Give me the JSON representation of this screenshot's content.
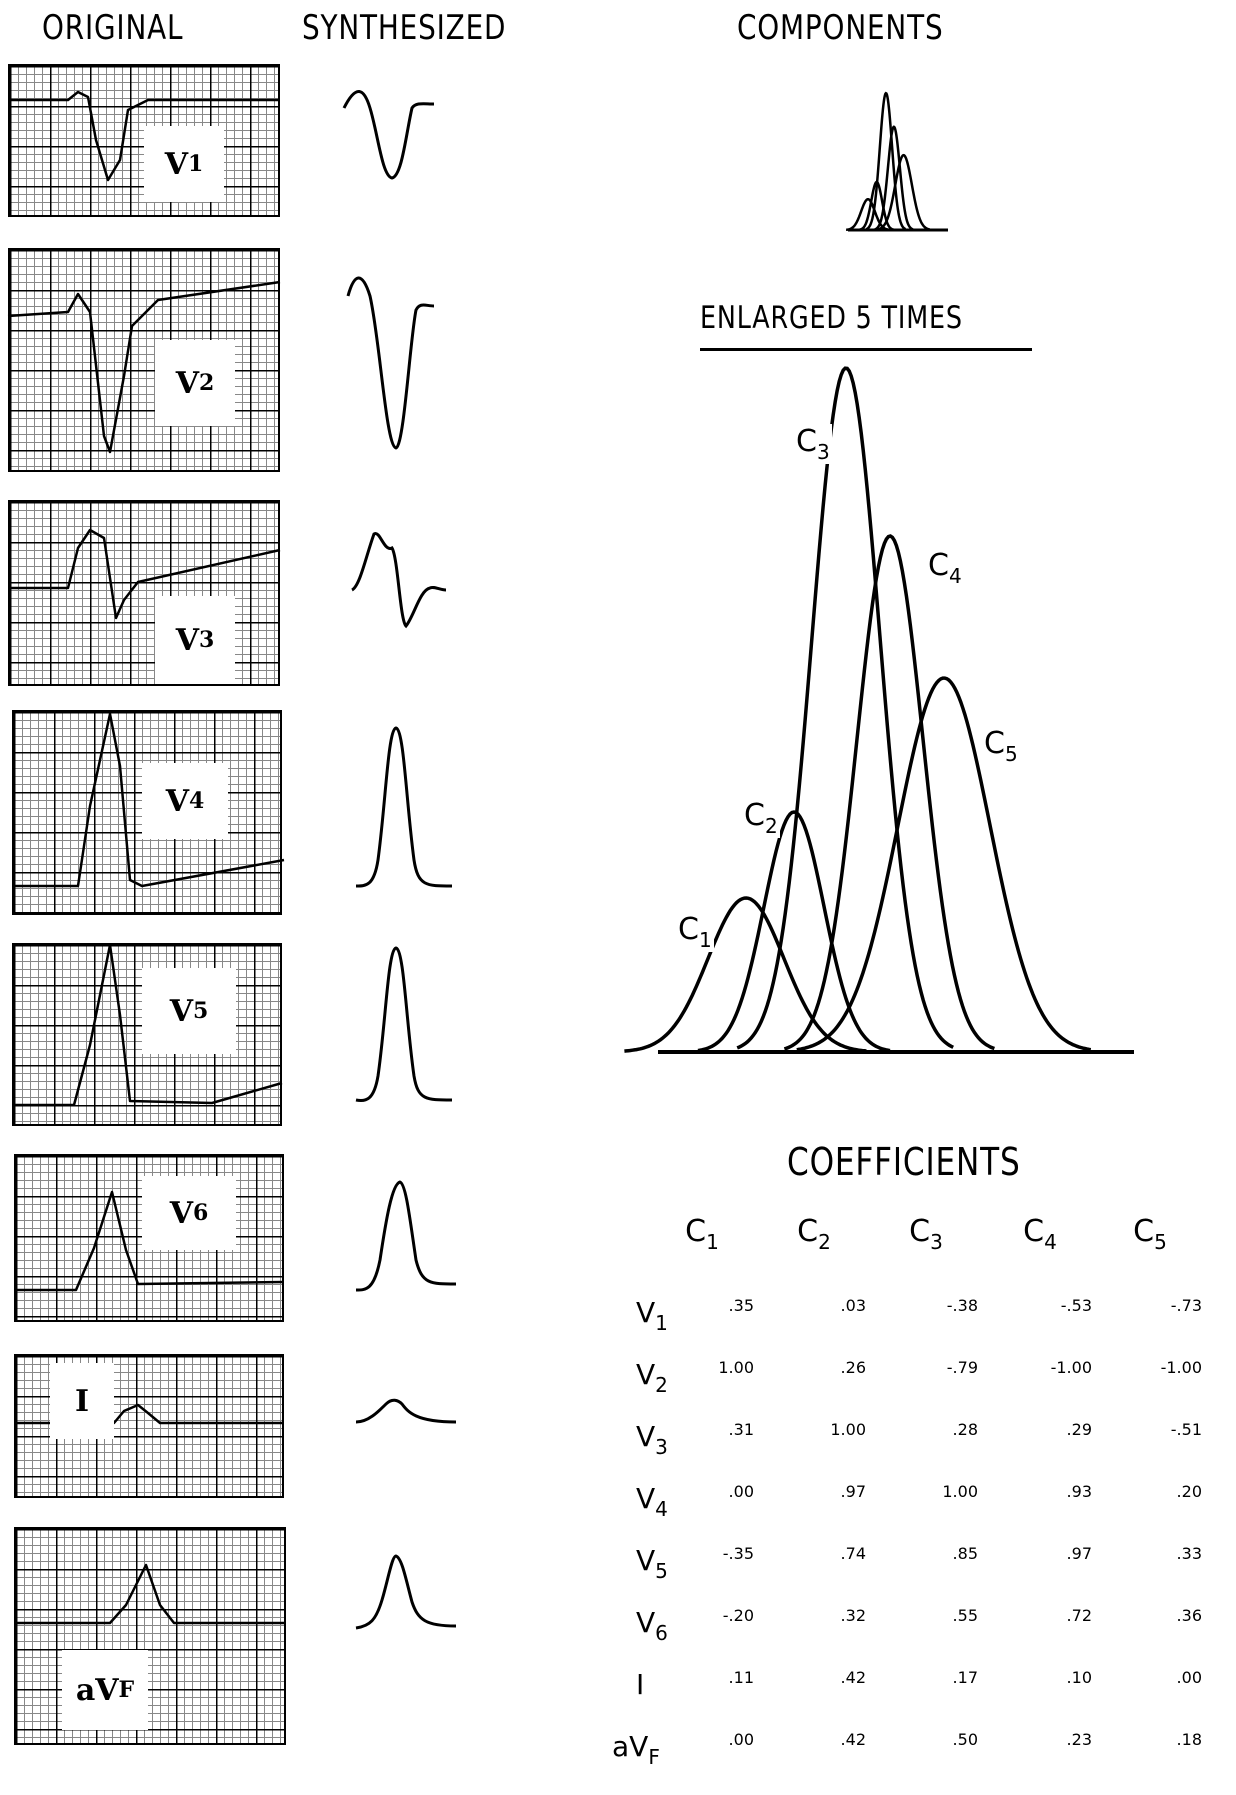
{
  "headers": {
    "original": "ORIGINAL",
    "synthesized": "SYNTHESIZED",
    "components": "COMPONENTS",
    "enlarged": "ENLARGED 5 TIMES",
    "coefficients": "COEFFICIENTS"
  },
  "leads": [
    {
      "name": "V",
      "sub": "1"
    },
    {
      "name": "V",
      "sub": "2"
    },
    {
      "name": "V",
      "sub": "3"
    },
    {
      "name": "V",
      "sub": "4"
    },
    {
      "name": "V",
      "sub": "5"
    },
    {
      "name": "V",
      "sub": "6"
    },
    {
      "name": "I",
      "sub": ""
    },
    {
      "name": "aV",
      "sub": "F"
    }
  ],
  "component_labels": [
    {
      "name": "C",
      "sub": "1"
    },
    {
      "name": "C",
      "sub": "2"
    },
    {
      "name": "C",
      "sub": "3"
    },
    {
      "name": "C",
      "sub": "4"
    },
    {
      "name": "C",
      "sub": "5"
    }
  ],
  "coefficients": {
    "columns": [
      {
        "name": "C",
        "sub": "1"
      },
      {
        "name": "C",
        "sub": "2"
      },
      {
        "name": "C",
        "sub": "3"
      },
      {
        "name": "C",
        "sub": "4"
      },
      {
        "name": "C",
        "sub": "5"
      }
    ],
    "rows": [
      {
        "lead": "V",
        "sub": "1",
        "values": [
          ".35",
          ".03",
          "-.38",
          "-.53",
          "-.73"
        ]
      },
      {
        "lead": "V",
        "sub": "2",
        "values": [
          "1.00",
          ".26",
          "-.79",
          "-1.00",
          "-1.00"
        ]
      },
      {
        "lead": "V",
        "sub": "3",
        "values": [
          ".31",
          "1.00",
          ".28",
          ".29",
          "-.51"
        ]
      },
      {
        "lead": "V",
        "sub": "4",
        "values": [
          ".00",
          ".97",
          "1.00",
          ".93",
          ".20"
        ]
      },
      {
        "lead": "V",
        "sub": "5",
        "values": [
          "-.35",
          ".74",
          ".85",
          ".97",
          ".33"
        ]
      },
      {
        "lead": "V",
        "sub": "6",
        "values": [
          "-.20",
          ".32",
          ".55",
          ".72",
          ".36"
        ]
      },
      {
        "lead": "I",
        "sub": "",
        "values": [
          ".11",
          ".42",
          ".17",
          ".10",
          ".00"
        ]
      },
      {
        "lead": "aV",
        "sub": "F",
        "values": [
          ".00",
          ".42",
          ".50",
          ".23",
          ".18"
        ]
      }
    ]
  }
}
